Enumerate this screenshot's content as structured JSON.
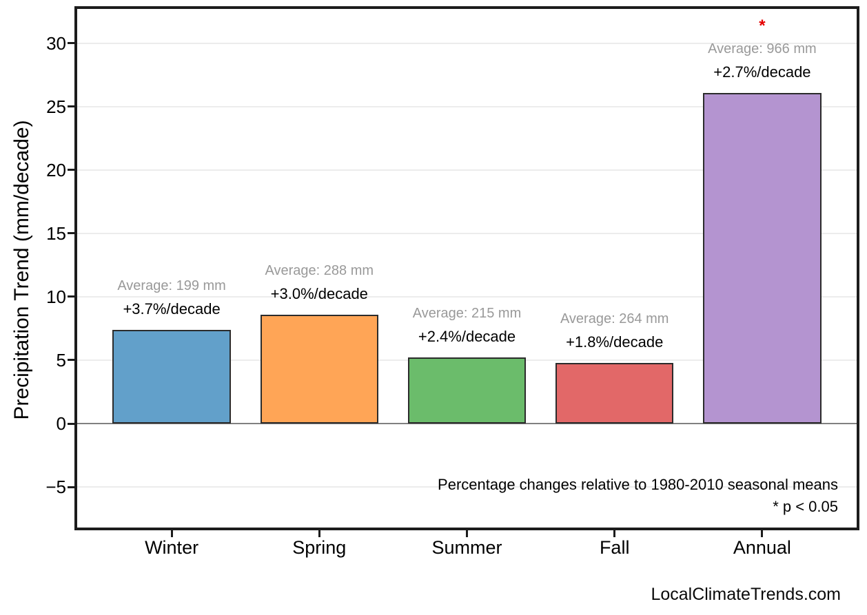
{
  "chart_data": {
    "type": "bar",
    "title": "",
    "ylabel": "Precipitation Trend (mm/decade)",
    "xlabel": "",
    "categories": [
      "Winter",
      "Spring",
      "Summer",
      "Fall",
      "Annual"
    ],
    "values": [
      7.4,
      8.6,
      5.2,
      4.8,
      26.1
    ],
    "bars": [
      {
        "category": "Winter",
        "value": 7.4,
        "average_label": "Average: 199 mm",
        "trend_label": "+3.7%/decade",
        "average_mm": 199,
        "trend_pct_per_decade": 3.7,
        "significant": false,
        "color": "#62A0CA"
      },
      {
        "category": "Spring",
        "value": 8.6,
        "average_label": "Average: 288 mm",
        "trend_label": "+3.0%/decade",
        "average_mm": 288,
        "trend_pct_per_decade": 3.0,
        "significant": false,
        "color": "#FFA556"
      },
      {
        "category": "Summer",
        "value": 5.2,
        "average_label": "Average: 215 mm",
        "trend_label": "+2.4%/decade",
        "average_mm": 215,
        "trend_pct_per_decade": 2.4,
        "significant": false,
        "color": "#6BBC6B"
      },
      {
        "category": "Fall",
        "value": 4.8,
        "average_label": "Average: 264 mm",
        "trend_label": "+1.8%/decade",
        "average_mm": 264,
        "trend_pct_per_decade": 1.8,
        "significant": false,
        "color": "#E26868"
      },
      {
        "category": "Annual",
        "value": 26.1,
        "average_label": "Average: 966 mm",
        "trend_label": "+2.7%/decade",
        "average_mm": 966,
        "trend_pct_per_decade": 2.7,
        "significant": true,
        "color": "#B494D0"
      }
    ],
    "significance_marker": "*",
    "yticks": [
      {
        "value": -5,
        "label": "−5"
      },
      {
        "value": 0,
        "label": "0"
      },
      {
        "value": 5,
        "label": "5"
      },
      {
        "value": 10,
        "label": "10"
      },
      {
        "value": 15,
        "label": "15"
      },
      {
        "value": 20,
        "label": "20"
      },
      {
        "value": 25,
        "label": "25"
      },
      {
        "value": 30,
        "label": "30"
      }
    ],
    "ylim": [
      -8.2,
      32.7
    ],
    "grid": true,
    "zero_line": true,
    "legend": null,
    "annotations": [
      "Percentage changes relative to 1980-2010 seasonal means",
      "* p < 0.05"
    ]
  },
  "watermark": {
    "text": "LocalClimateTrends.com"
  },
  "colors": {
    "background": "#FFFFFF",
    "spine": "#1C1C1C",
    "grid": "#ECECEC",
    "zero_line": "#808080",
    "bar_edge": "#2B2B2B",
    "average_text": "#999999",
    "trend_text": "#000000",
    "significance": "#E50000",
    "tick_text": "#000000"
  }
}
